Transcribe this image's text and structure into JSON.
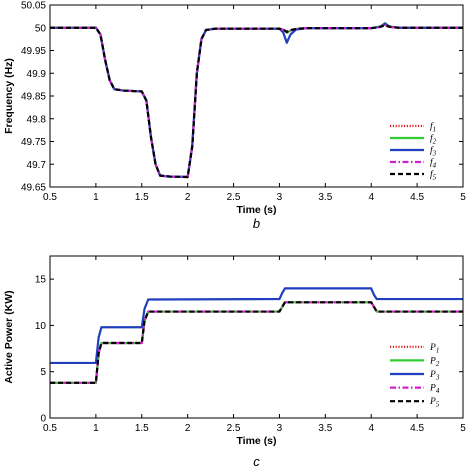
{
  "chart_data": [
    {
      "type": "line",
      "panel_label": "b",
      "xlabel": "Time (s)",
      "ylabel": "Frequency (Hz)",
      "xlim": [
        0.5,
        5
      ],
      "ylim": [
        49.65,
        50.05
      ],
      "xticks": [
        "0.5",
        "1",
        "1.5",
        "2",
        "2.5",
        "3",
        "3.5",
        "4",
        "4.5",
        "5"
      ],
      "yticks": [
        "49.65",
        "49.7",
        "49.75",
        "49.8",
        "49.85",
        "49.9",
        "49.95",
        "50",
        "50.05"
      ],
      "grid": false,
      "legend_position": "bottom-right",
      "series": [
        {
          "name": "f1",
          "label_main": "f",
          "label_sub": "1",
          "color": "#e41a1c",
          "style": "dotted",
          "x": [
            0.5,
            1.0,
            1.05,
            1.1,
            1.15,
            1.2,
            1.3,
            1.5,
            1.55,
            1.6,
            1.65,
            1.7,
            1.8,
            2.0,
            2.05,
            2.1,
            2.15,
            2.2,
            2.3,
            3.0,
            3.05,
            3.08,
            3.12,
            3.2,
            3.3,
            4.0,
            4.1,
            4.15,
            4.2,
            4.3,
            5.0
          ],
          "y": [
            50.0,
            50.0,
            49.985,
            49.93,
            49.885,
            49.865,
            49.862,
            49.86,
            49.84,
            49.76,
            49.7,
            49.675,
            49.673,
            49.672,
            49.74,
            49.9,
            49.975,
            49.995,
            49.998,
            49.998,
            49.995,
            49.989,
            49.994,
            49.998,
            49.999,
            49.999,
            50.002,
            50.007,
            50.002,
            50.0,
            50.0
          ]
        },
        {
          "name": "f2",
          "label_main": "f",
          "label_sub": "2",
          "color": "#33cc33",
          "style": "solid",
          "x": [
            0.5,
            1.0,
            1.05,
            1.1,
            1.15,
            1.2,
            1.3,
            1.5,
            1.55,
            1.6,
            1.65,
            1.7,
            1.8,
            2.0,
            2.05,
            2.1,
            2.15,
            2.2,
            2.3,
            3.0,
            3.05,
            3.08,
            3.12,
            3.2,
            3.3,
            4.0,
            4.1,
            4.15,
            4.2,
            4.3,
            5.0
          ],
          "y": [
            50.0,
            50.0,
            49.985,
            49.93,
            49.885,
            49.865,
            49.862,
            49.86,
            49.84,
            49.76,
            49.7,
            49.675,
            49.673,
            49.672,
            49.74,
            49.9,
            49.975,
            49.995,
            49.998,
            49.998,
            49.995,
            49.989,
            49.994,
            49.998,
            49.999,
            49.999,
            50.003,
            50.01,
            50.003,
            50.0,
            50.0
          ]
        },
        {
          "name": "f3",
          "label_main": "f",
          "label_sub": "3",
          "color": "#1f3fbf",
          "style": "solid",
          "x": [
            0.5,
            1.0,
            1.05,
            1.1,
            1.15,
            1.2,
            1.3,
            1.5,
            1.55,
            1.6,
            1.65,
            1.7,
            1.8,
            2.0,
            2.05,
            2.1,
            2.15,
            2.2,
            2.3,
            3.0,
            3.04,
            3.08,
            3.12,
            3.18,
            3.3,
            4.0,
            4.1,
            4.15,
            4.2,
            4.3,
            5.0
          ],
          "y": [
            50.0,
            50.0,
            49.985,
            49.93,
            49.885,
            49.865,
            49.862,
            49.86,
            49.84,
            49.76,
            49.7,
            49.675,
            49.673,
            49.672,
            49.74,
            49.9,
            49.975,
            49.995,
            49.998,
            49.998,
            49.99,
            49.967,
            49.985,
            49.996,
            49.999,
            49.999,
            50.002,
            50.009,
            50.002,
            50.0,
            50.0
          ]
        },
        {
          "name": "f4",
          "label_main": "f",
          "label_sub": "4",
          "color": "#d11fd1",
          "style": "dashdot",
          "x": [
            0.5,
            1.0,
            1.05,
            1.1,
            1.15,
            1.2,
            1.3,
            1.5,
            1.55,
            1.6,
            1.65,
            1.7,
            1.8,
            2.0,
            2.05,
            2.1,
            2.15,
            2.2,
            2.3,
            3.0,
            3.05,
            3.08,
            3.12,
            3.2,
            3.3,
            4.0,
            4.1,
            4.15,
            4.2,
            4.3,
            5.0
          ],
          "y": [
            50.0,
            50.0,
            49.985,
            49.93,
            49.885,
            49.865,
            49.862,
            49.86,
            49.84,
            49.76,
            49.7,
            49.675,
            49.673,
            49.672,
            49.74,
            49.9,
            49.975,
            49.995,
            49.998,
            49.998,
            49.995,
            49.99,
            49.994,
            49.998,
            49.999,
            49.999,
            50.002,
            50.006,
            50.002,
            50.0,
            50.0
          ]
        },
        {
          "name": "f5",
          "label_main": "f",
          "label_sub": "5",
          "color": "#000000",
          "style": "dashed",
          "x": [
            0.5,
            1.0,
            1.05,
            1.1,
            1.15,
            1.2,
            1.3,
            1.5,
            1.55,
            1.6,
            1.65,
            1.7,
            1.8,
            2.0,
            2.05,
            2.1,
            2.15,
            2.2,
            2.3,
            3.0,
            3.05,
            3.08,
            3.12,
            3.2,
            3.3,
            4.0,
            4.1,
            4.15,
            4.2,
            4.3,
            5.0
          ],
          "y": [
            50.0,
            50.0,
            49.985,
            49.93,
            49.885,
            49.865,
            49.862,
            49.86,
            49.84,
            49.76,
            49.7,
            49.675,
            49.673,
            49.672,
            49.74,
            49.9,
            49.975,
            49.995,
            49.998,
            49.998,
            49.995,
            49.991,
            49.995,
            49.998,
            49.999,
            49.999,
            50.002,
            50.005,
            50.002,
            50.0,
            50.0
          ]
        }
      ]
    },
    {
      "type": "line",
      "panel_label": "c",
      "xlabel": "Time (s)",
      "ylabel": "Active Power (KW)",
      "xlim": [
        0.5,
        5
      ],
      "ylim": [
        0,
        17.5
      ],
      "xticks": [
        "0.5",
        "1",
        "1.5",
        "2",
        "2.5",
        "3",
        "3.5",
        "4",
        "4.5",
        "5"
      ],
      "yticks": [
        "0",
        "5",
        "10",
        "15"
      ],
      "grid": false,
      "legend_position": "bottom-right",
      "series": [
        {
          "name": "P1",
          "label_main": "P",
          "label_sub": "1",
          "color": "#e41a1c",
          "style": "dotted",
          "x": [
            0.5,
            1.0,
            1.03,
            1.06,
            1.5,
            1.53,
            1.57,
            3.0,
            3.03,
            3.06,
            4.0,
            4.03,
            4.06,
            5.0
          ],
          "y": [
            3.8,
            3.8,
            7.0,
            8.1,
            8.1,
            10.5,
            11.5,
            11.5,
            12.0,
            12.5,
            12.5,
            12.0,
            11.5,
            11.5
          ]
        },
        {
          "name": "P2",
          "label_main": "P",
          "label_sub": "2",
          "color": "#33cc33",
          "style": "solid",
          "x": [
            0.5,
            1.0,
            1.03,
            1.06,
            1.5,
            1.53,
            1.57,
            3.0,
            3.03,
            3.06,
            4.0,
            4.03,
            4.06,
            5.0
          ],
          "y": [
            3.8,
            3.8,
            7.0,
            8.1,
            8.1,
            10.5,
            11.5,
            11.5,
            12.0,
            12.5,
            12.5,
            12.0,
            11.5,
            11.5
          ]
        },
        {
          "name": "P3",
          "label_main": "P",
          "label_sub": "3",
          "color": "#1f3fbf",
          "style": "solid",
          "x": [
            0.5,
            1.0,
            1.03,
            1.06,
            1.5,
            1.53,
            1.57,
            3.0,
            3.03,
            3.06,
            4.0,
            4.03,
            4.06,
            5.0
          ],
          "y": [
            5.95,
            5.95,
            8.7,
            9.8,
            9.8,
            11.8,
            12.8,
            12.85,
            13.5,
            14.0,
            14.0,
            13.3,
            12.85,
            12.85
          ]
        },
        {
          "name": "P4",
          "label_main": "P",
          "label_sub": "4",
          "color": "#d11fd1",
          "style": "dashdot",
          "x": [
            0.5,
            1.0,
            1.03,
            1.06,
            1.5,
            1.53,
            1.57,
            3.0,
            3.03,
            3.06,
            4.0,
            4.03,
            4.06,
            5.0
          ],
          "y": [
            3.8,
            3.8,
            7.0,
            8.1,
            8.1,
            10.5,
            11.5,
            11.5,
            12.0,
            12.5,
            12.5,
            12.0,
            11.5,
            11.5
          ]
        },
        {
          "name": "P5",
          "label_main": "P",
          "label_sub": "5",
          "color": "#000000",
          "style": "dashed",
          "x": [
            0.5,
            1.0,
            1.03,
            1.06,
            1.5,
            1.53,
            1.57,
            3.0,
            3.03,
            3.06,
            4.0,
            4.03,
            4.06,
            5.0
          ],
          "y": [
            3.8,
            3.8,
            7.0,
            8.1,
            8.1,
            10.5,
            11.5,
            11.5,
            12.0,
            12.5,
            12.5,
            12.0,
            11.5,
            11.5
          ]
        }
      ]
    }
  ]
}
